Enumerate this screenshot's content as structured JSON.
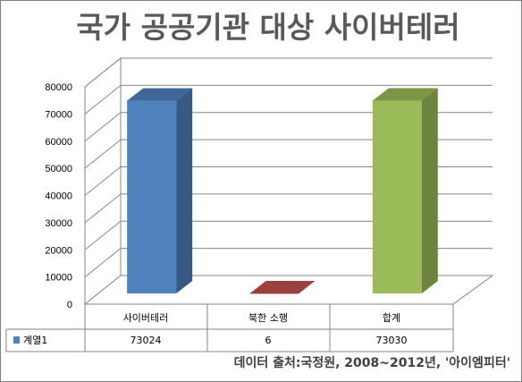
{
  "chart_data": {
    "type": "bar",
    "title": "국가 공공기관 대상 사이버테러",
    "categories": [
      "사이버테러",
      "북한 소행",
      "합계"
    ],
    "series": [
      {
        "name": "계열1",
        "values": [
          73024,
          6,
          73030
        ],
        "colors": [
          "#4f81bd",
          "#c0504d",
          "#9bbb59"
        ]
      }
    ],
    "ylim": [
      0,
      80000
    ],
    "y_ticks": [
      "0",
      "10000",
      "20000",
      "30000",
      "40000",
      "50000",
      "60000",
      "70000",
      "80000"
    ],
    "grid": true,
    "legend_placement": "data-table",
    "data_table": true,
    "data_labels": [
      "73024",
      "6",
      "73030"
    ],
    "source_note": "데이터 출처:국정원, 2008~2012년, '아이엠피터'"
  }
}
